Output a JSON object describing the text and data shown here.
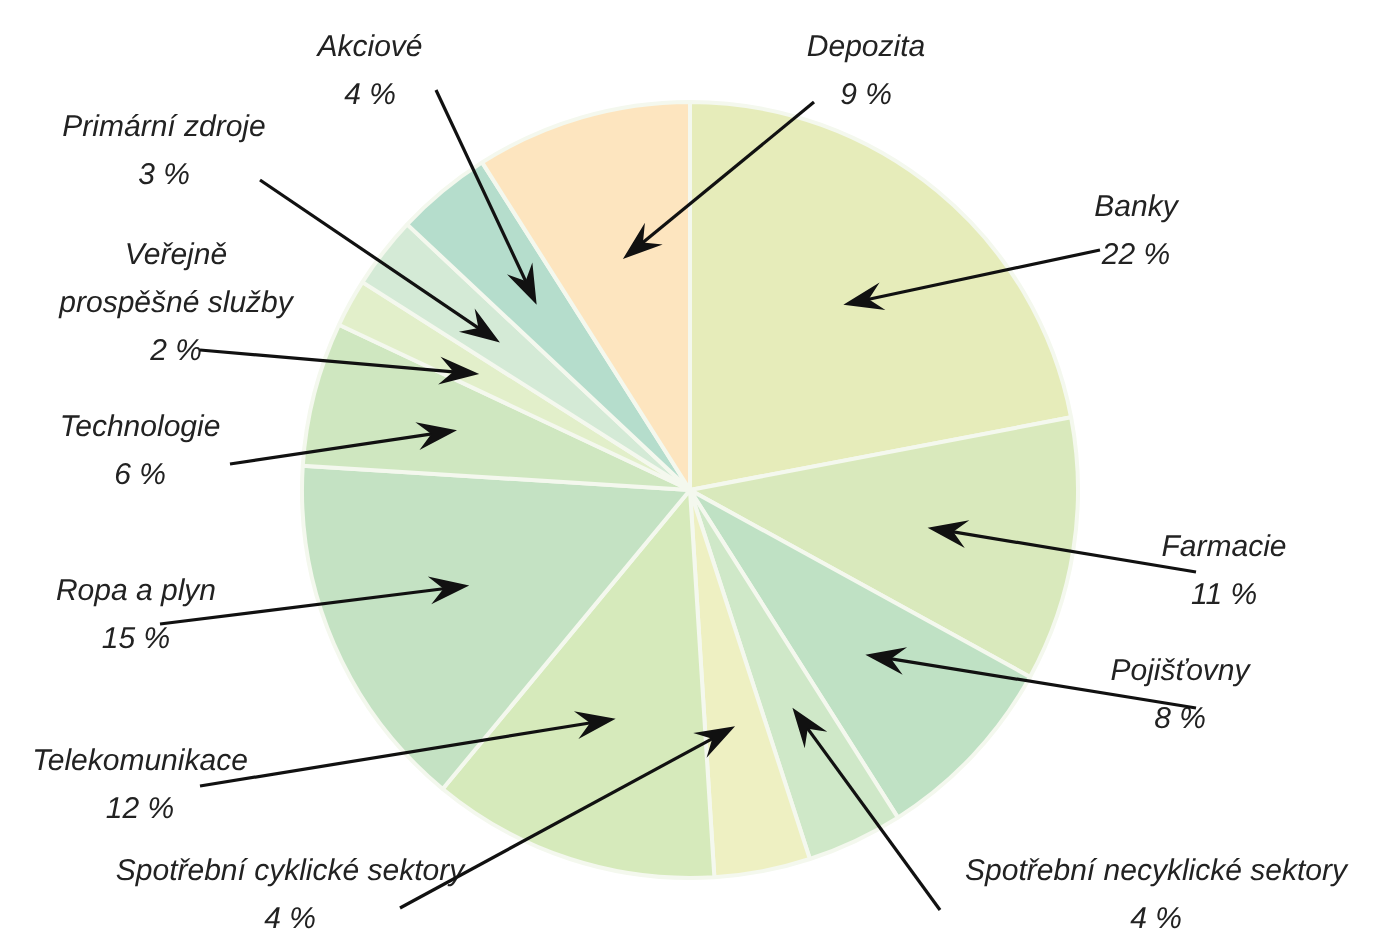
{
  "chart_data": {
    "type": "pie",
    "categories": [
      "Banky",
      "Farmacie",
      "Pojišťovny",
      "Spotřební necyklické sektory",
      "Spotřební cyklické sektory",
      "Telekomunikace",
      "Ropa a plyn",
      "Technologie",
      "Veřejně prospěšné služby",
      "Primární zdroje",
      "Akciové",
      "Depozita"
    ],
    "values": [
      22,
      11,
      8,
      4,
      4,
      12,
      15,
      6,
      2,
      3,
      4,
      9
    ],
    "value_labels": [
      "22 %",
      "11 %",
      "8 %",
      "4 %",
      "4 %",
      "12 %",
      "15 %",
      "6 %",
      "2 %",
      "3 %",
      "4 %",
      "9 %"
    ],
    "colors": [
      "#e6ecba",
      "#d9e9bc",
      "#bfe1c4",
      "#cfe8c8",
      "#eef0c2",
      "#d6eabb",
      "#c4e2c3",
      "#cfe7c0",
      "#e2efca",
      "#d4ead6",
      "#b5ddcc",
      "#fde5bf"
    ],
    "legend": false
  }
}
